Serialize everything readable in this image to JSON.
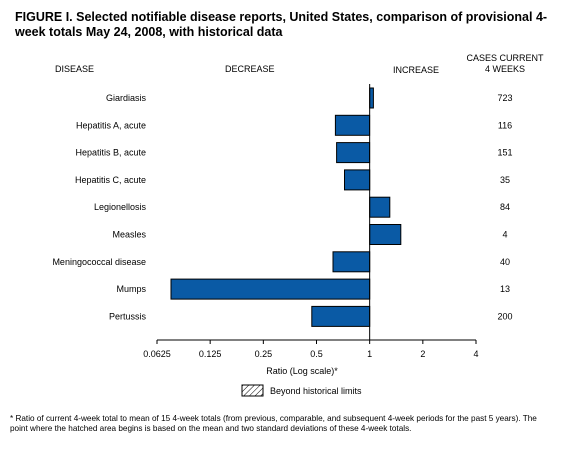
{
  "title": "FIGURE I. Selected notifiable disease reports, United States, comparison of provisional 4-week totals May 24, 2008, with historical data",
  "headers": {
    "disease": "DISEASE",
    "decrease": "DECREASE",
    "increase": "INCREASE",
    "cases_line1": "CASES CURRENT",
    "cases_line2": "4 WEEKS"
  },
  "legend": {
    "label": "Beyond historical limits"
  },
  "footnote": "* Ratio of current 4-week total to mean of 15 4-week totals (from previous, comparable, and subsequent 4-week periods for the past 5 years). The point where the hatched area begins is based on the mean and two standard deviations of these 4-week totals.",
  "colors": {
    "bar": "#0a5aa5",
    "bar_stroke": "#000000"
  },
  "chart_data": {
    "type": "bar",
    "orientation": "horizontal",
    "title": "FIGURE I. Selected notifiable disease reports, United States, comparison of provisional 4-week totals May 24, 2008, with historical data",
    "xlabel": "Ratio (Log scale)*",
    "xscale": "log2",
    "xlim": [
      0.0625,
      4
    ],
    "ticks": [
      0.0625,
      0.125,
      0.25,
      0.5,
      1,
      2,
      4
    ],
    "tick_labels": [
      "0.0625",
      "0.125",
      "0.25",
      "0.5",
      "1",
      "2",
      "4"
    ],
    "categories": [
      "Giardiasis",
      "Hepatitis A, acute",
      "Hepatitis B, acute",
      "Hepatitis C, acute",
      "Legionellosis",
      "Measles",
      "Meningococcal disease",
      "Mumps",
      "Pertussis"
    ],
    "values": [
      1.05,
      0.64,
      0.65,
      0.72,
      1.3,
      1.5,
      0.62,
      0.075,
      0.47
    ],
    "cases_current_4_weeks": [
      723,
      116,
      151,
      35,
      84,
      4,
      40,
      13,
      200
    ],
    "legend": [
      "Beyond historical limits"
    ]
  }
}
